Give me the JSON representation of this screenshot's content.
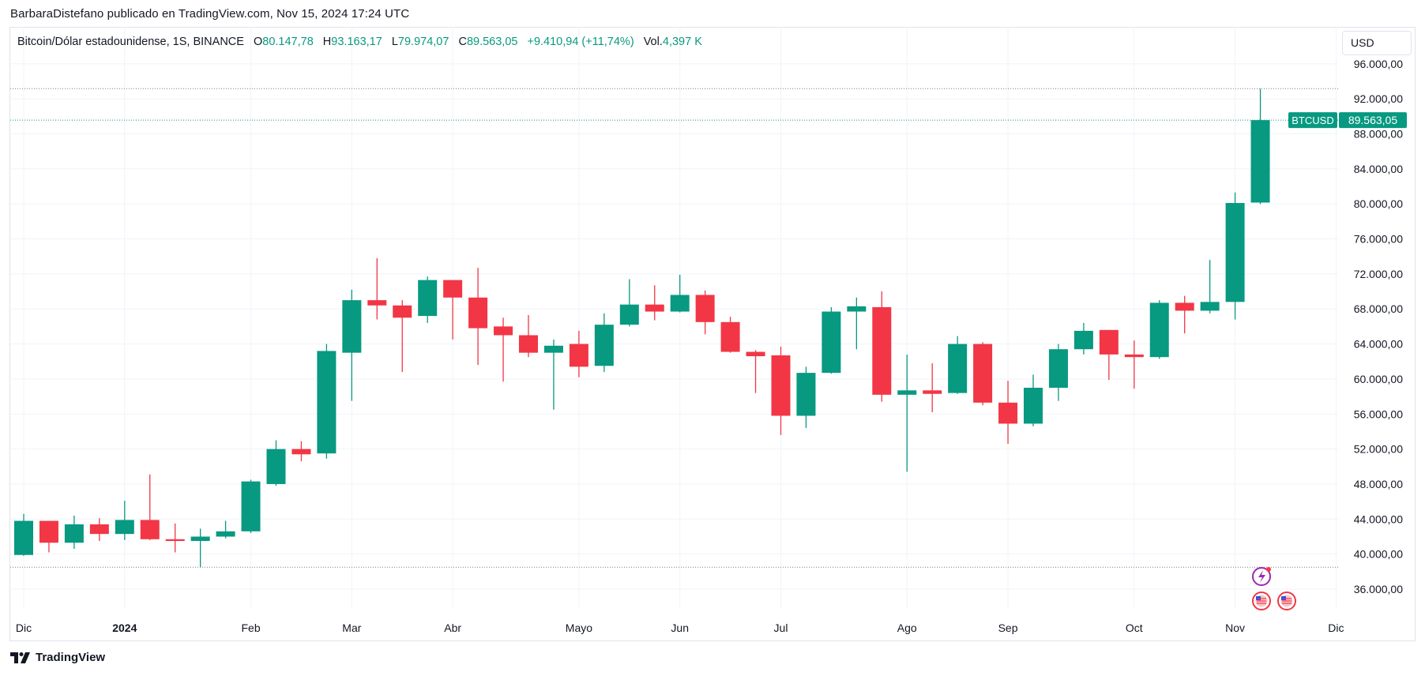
{
  "header": {
    "publisher": "BarbaraDistefano publicado en TradingView.com, Nov 15, 2024 17:24 UTC"
  },
  "legend": {
    "symbol": "Bitcoin/Dólar estadounidense, 1S, BINANCE",
    "o_label": "O",
    "o_value": "80.147,78",
    "h_label": "H",
    "h_value": "93.163,17",
    "l_label": "L",
    "l_value": "79.974,07",
    "c_label": "C",
    "c_value": "89.563,05",
    "change": "+9.410,94 (+11,74%)",
    "vol_label": "Vol.",
    "vol_value": "4,397 K"
  },
  "currency_button": "USD",
  "price_tag": {
    "label": "BTCUSD",
    "value": "89.563,05"
  },
  "footer": {
    "brand": "TradingView"
  },
  "colors": {
    "up": "#089981",
    "down": "#f23645",
    "grid": "#f0f3fa",
    "text": "#131722"
  },
  "chart_data": {
    "type": "candlestick",
    "ylim": [
      33000,
      97000
    ],
    "y_ticks": [
      {
        "value": 36000,
        "label": "36.000,00"
      },
      {
        "value": 40000,
        "label": "40.000,00"
      },
      {
        "value": 44000,
        "label": "44.000,00"
      },
      {
        "value": 48000,
        "label": "48.000,00"
      },
      {
        "value": 52000,
        "label": "52.000,00"
      },
      {
        "value": 56000,
        "label": "56.000,00"
      },
      {
        "value": 60000,
        "label": "60.000,00"
      },
      {
        "value": 64000,
        "label": "64.000,00"
      },
      {
        "value": 68000,
        "label": "68.000,00"
      },
      {
        "value": 72000,
        "label": "72.000,00"
      },
      {
        "value": 76000,
        "label": "76.000,00"
      },
      {
        "value": 80000,
        "label": "80.000,00"
      },
      {
        "value": 84000,
        "label": "84.000,00"
      },
      {
        "value": 88000,
        "label": "88.000,00"
      },
      {
        "value": 92000,
        "label": "92.000,00"
      },
      {
        "value": 96000,
        "label": "96.000,00"
      }
    ],
    "x_ticks": [
      {
        "index": 0,
        "label": "Dic",
        "bold": false
      },
      {
        "index": 4,
        "label": "2024",
        "bold": true
      },
      {
        "index": 9,
        "label": "Feb",
        "bold": false
      },
      {
        "index": 13,
        "label": "Mar",
        "bold": false
      },
      {
        "index": 17,
        "label": "Abr",
        "bold": false
      },
      {
        "index": 22,
        "label": "Mayo",
        "bold": false
      },
      {
        "index": 26,
        "label": "Jun",
        "bold": false
      },
      {
        "index": 30,
        "label": "Jul",
        "bold": false
      },
      {
        "index": 35,
        "label": "Ago",
        "bold": false
      },
      {
        "index": 39,
        "label": "Sep",
        "bold": false
      },
      {
        "index": 44,
        "label": "Oct",
        "bold": false
      },
      {
        "index": 48,
        "label": "Nov",
        "bold": false
      },
      {
        "index": 52,
        "label": "Dic",
        "bold": false
      }
    ],
    "ref_lines": [
      93163,
      89563,
      38500
    ],
    "candles": [
      {
        "o": 39900,
        "h": 44600,
        "l": 39800,
        "c": 43800
      },
      {
        "o": 43800,
        "h": 43800,
        "l": 40200,
        "c": 41300
      },
      {
        "o": 41300,
        "h": 44400,
        "l": 40600,
        "c": 43400
      },
      {
        "o": 43400,
        "h": 44100,
        "l": 41500,
        "c": 42300
      },
      {
        "o": 42300,
        "h": 46100,
        "l": 41600,
        "c": 43900
      },
      {
        "o": 43900,
        "h": 49100,
        "l": 41600,
        "c": 41700
      },
      {
        "o": 41700,
        "h": 43500,
        "l": 40200,
        "c": 41500
      },
      {
        "o": 41500,
        "h": 42900,
        "l": 38500,
        "c": 42000
      },
      {
        "o": 42000,
        "h": 43800,
        "l": 41800,
        "c": 42600
      },
      {
        "o": 42600,
        "h": 48500,
        "l": 42400,
        "c": 48300
      },
      {
        "o": 48000,
        "h": 53000,
        "l": 47800,
        "c": 52000
      },
      {
        "o": 52000,
        "h": 52900,
        "l": 50600,
        "c": 51400
      },
      {
        "o": 51500,
        "h": 64000,
        "l": 50900,
        "c": 63200
      },
      {
        "o": 63000,
        "h": 70200,
        "l": 57500,
        "c": 69000
      },
      {
        "o": 69000,
        "h": 73800,
        "l": 66800,
        "c": 68400
      },
      {
        "o": 68400,
        "h": 69000,
        "l": 60800,
        "c": 67000
      },
      {
        "o": 67200,
        "h": 71700,
        "l": 66400,
        "c": 71300
      },
      {
        "o": 71300,
        "h": 71300,
        "l": 64500,
        "c": 69300
      },
      {
        "o": 69300,
        "h": 72700,
        "l": 61600,
        "c": 65800
      },
      {
        "o": 66000,
        "h": 67000,
        "l": 59700,
        "c": 65000
      },
      {
        "o": 65000,
        "h": 67300,
        "l": 62500,
        "c": 63000
      },
      {
        "o": 63000,
        "h": 64500,
        "l": 56500,
        "c": 63800
      },
      {
        "o": 64000,
        "h": 65500,
        "l": 60200,
        "c": 61400
      },
      {
        "o": 61500,
        "h": 67500,
        "l": 60800,
        "c": 66200
      },
      {
        "o": 66200,
        "h": 71400,
        "l": 66000,
        "c": 68500
      },
      {
        "o": 68500,
        "h": 70700,
        "l": 66700,
        "c": 67700
      },
      {
        "o": 67700,
        "h": 71900,
        "l": 67600,
        "c": 69600
      },
      {
        "o": 69600,
        "h": 70100,
        "l": 65100,
        "c": 66500
      },
      {
        "o": 66500,
        "h": 67100,
        "l": 63000,
        "c": 63100
      },
      {
        "o": 63100,
        "h": 63300,
        "l": 58400,
        "c": 62600
      },
      {
        "o": 62700,
        "h": 63700,
        "l": 53600,
        "c": 55800
      },
      {
        "o": 55800,
        "h": 61400,
        "l": 54400,
        "c": 60700
      },
      {
        "o": 60700,
        "h": 68200,
        "l": 60600,
        "c": 67700
      },
      {
        "o": 67700,
        "h": 69300,
        "l": 63400,
        "c": 68300
      },
      {
        "o": 68200,
        "h": 70000,
        "l": 57400,
        "c": 58200
      },
      {
        "o": 58200,
        "h": 62800,
        "l": 49400,
        "c": 58700
      },
      {
        "o": 58700,
        "h": 61800,
        "l": 56200,
        "c": 58300
      },
      {
        "o": 58400,
        "h": 64900,
        "l": 58300,
        "c": 64000
      },
      {
        "o": 64000,
        "h": 64200,
        "l": 57000,
        "c": 57300
      },
      {
        "o": 57300,
        "h": 59800,
        "l": 52600,
        "c": 54900
      },
      {
        "o": 54900,
        "h": 60500,
        "l": 54600,
        "c": 59000
      },
      {
        "o": 59000,
        "h": 64000,
        "l": 57500,
        "c": 63400
      },
      {
        "o": 63400,
        "h": 66400,
        "l": 62800,
        "c": 65500
      },
      {
        "o": 65600,
        "h": 65600,
        "l": 59900,
        "c": 62800
      },
      {
        "o": 62800,
        "h": 64400,
        "l": 58900,
        "c": 62500
      },
      {
        "o": 62500,
        "h": 69000,
        "l": 62300,
        "c": 68700
      },
      {
        "o": 68700,
        "h": 69500,
        "l": 65200,
        "c": 67800
      },
      {
        "o": 67800,
        "h": 73600,
        "l": 67500,
        "c": 68800
      },
      {
        "o": 68800,
        "h": 81300,
        "l": 66800,
        "c": 80100
      },
      {
        "o": 80148,
        "h": 93163,
        "l": 79974,
        "c": 89563
      }
    ]
  }
}
